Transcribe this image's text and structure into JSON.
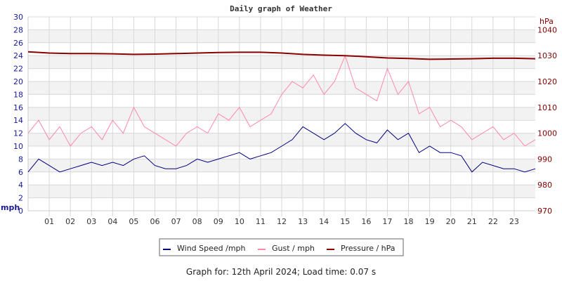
{
  "chart_data": {
    "type": "line",
    "title": "Daily graph of Weather",
    "y_left": {
      "label": "mph",
      "range": [
        0,
        30
      ],
      "ticks": [
        0,
        2,
        4,
        6,
        8,
        10,
        12,
        14,
        16,
        18,
        20,
        22,
        24,
        26,
        28,
        30
      ],
      "color": "#1a1a99"
    },
    "y_right": {
      "label": "hPa",
      "range": [
        970,
        1045
      ],
      "ticks": [
        970,
        980,
        990,
        1000,
        1010,
        1020,
        1030,
        1040
      ],
      "color": "#800000"
    },
    "x": {
      "range": [
        0,
        24
      ],
      "tick_labels": [
        "01",
        "02",
        "03",
        "04",
        "05",
        "06",
        "07",
        "08",
        "09",
        "10",
        "11",
        "12",
        "13",
        "14",
        "15",
        "16",
        "17",
        "18",
        "19",
        "20",
        "21",
        "22",
        "23"
      ]
    },
    "grid": true,
    "legend_placement": "bottom",
    "series": [
      {
        "name": "Wind Speed /mph",
        "color": "#000080",
        "axis": "left",
        "x": [
          0,
          0.5,
          1,
          1.5,
          2,
          2.5,
          3,
          3.5,
          4,
          4.5,
          5,
          5.5,
          6,
          6.5,
          7,
          7.5,
          8,
          8.5,
          9,
          9.5,
          10,
          10.5,
          11,
          11.5,
          12,
          12.5,
          13,
          13.5,
          14,
          14.5,
          15,
          15.5,
          16,
          16.5,
          17,
          17.5,
          18,
          18.5,
          19,
          19.5,
          20,
          20.5,
          21,
          21.5,
          22,
          22.5,
          23,
          23.5,
          24
        ],
        "values": [
          6,
          8,
          7,
          6,
          6.5,
          7,
          7.5,
          7,
          7.5,
          7,
          8,
          8.5,
          7,
          6.5,
          6.5,
          7,
          8,
          7.5,
          8,
          8.5,
          9,
          8,
          8.5,
          9,
          10,
          11,
          13,
          12,
          11,
          12,
          13.5,
          12,
          11,
          10.5,
          12.5,
          11,
          12,
          9,
          10,
          9,
          9,
          8.5,
          6,
          7.5,
          7,
          6.5,
          6.5,
          6,
          6.5
        ]
      },
      {
        "name": "Gust / mph",
        "color": "#ff88aa",
        "axis": "left",
        "x": [
          0,
          0.5,
          1,
          1.5,
          2,
          2.5,
          3,
          3.5,
          4,
          4.5,
          5,
          5.5,
          6,
          6.5,
          7,
          7.5,
          8,
          8.5,
          9,
          9.5,
          10,
          10.5,
          11,
          11.5,
          12,
          12.5,
          13,
          13.5,
          14,
          14.5,
          15,
          15.5,
          16,
          16.5,
          17,
          17.5,
          18,
          18.5,
          19,
          19.5,
          20,
          20.5,
          21,
          21.5,
          22,
          22.5,
          23,
          23.5,
          24
        ],
        "values": [
          12,
          14,
          11,
          13,
          10,
          12,
          13,
          11,
          14,
          12,
          16,
          13,
          12,
          11,
          10,
          12,
          13,
          12,
          15,
          14,
          16,
          13,
          14,
          15,
          18,
          20,
          19,
          21,
          18,
          20,
          24,
          19,
          18,
          17,
          22,
          18,
          20,
          15,
          16,
          13,
          14,
          13,
          11,
          12,
          13,
          11,
          12,
          10,
          11
        ]
      },
      {
        "name": "Pressure / hPa",
        "color": "#8b0000",
        "axis": "right",
        "x": [
          0,
          1,
          2,
          3,
          4,
          5,
          6,
          7,
          8,
          9,
          10,
          11,
          12,
          13,
          14,
          15,
          16,
          17,
          18,
          19,
          20,
          21,
          22,
          23,
          24
        ],
        "values": [
          1031.5,
          1031,
          1030.8,
          1030.8,
          1030.7,
          1030.5,
          1030.6,
          1030.8,
          1031,
          1031.2,
          1031.3,
          1031.3,
          1031,
          1030.5,
          1030.2,
          1030,
          1029.6,
          1029.1,
          1028.9,
          1028.6,
          1028.7,
          1028.8,
          1029,
          1029,
          1028.8
        ]
      }
    ]
  },
  "footer": "Graph for: 12th April 2024; Load time: 0.07 s"
}
